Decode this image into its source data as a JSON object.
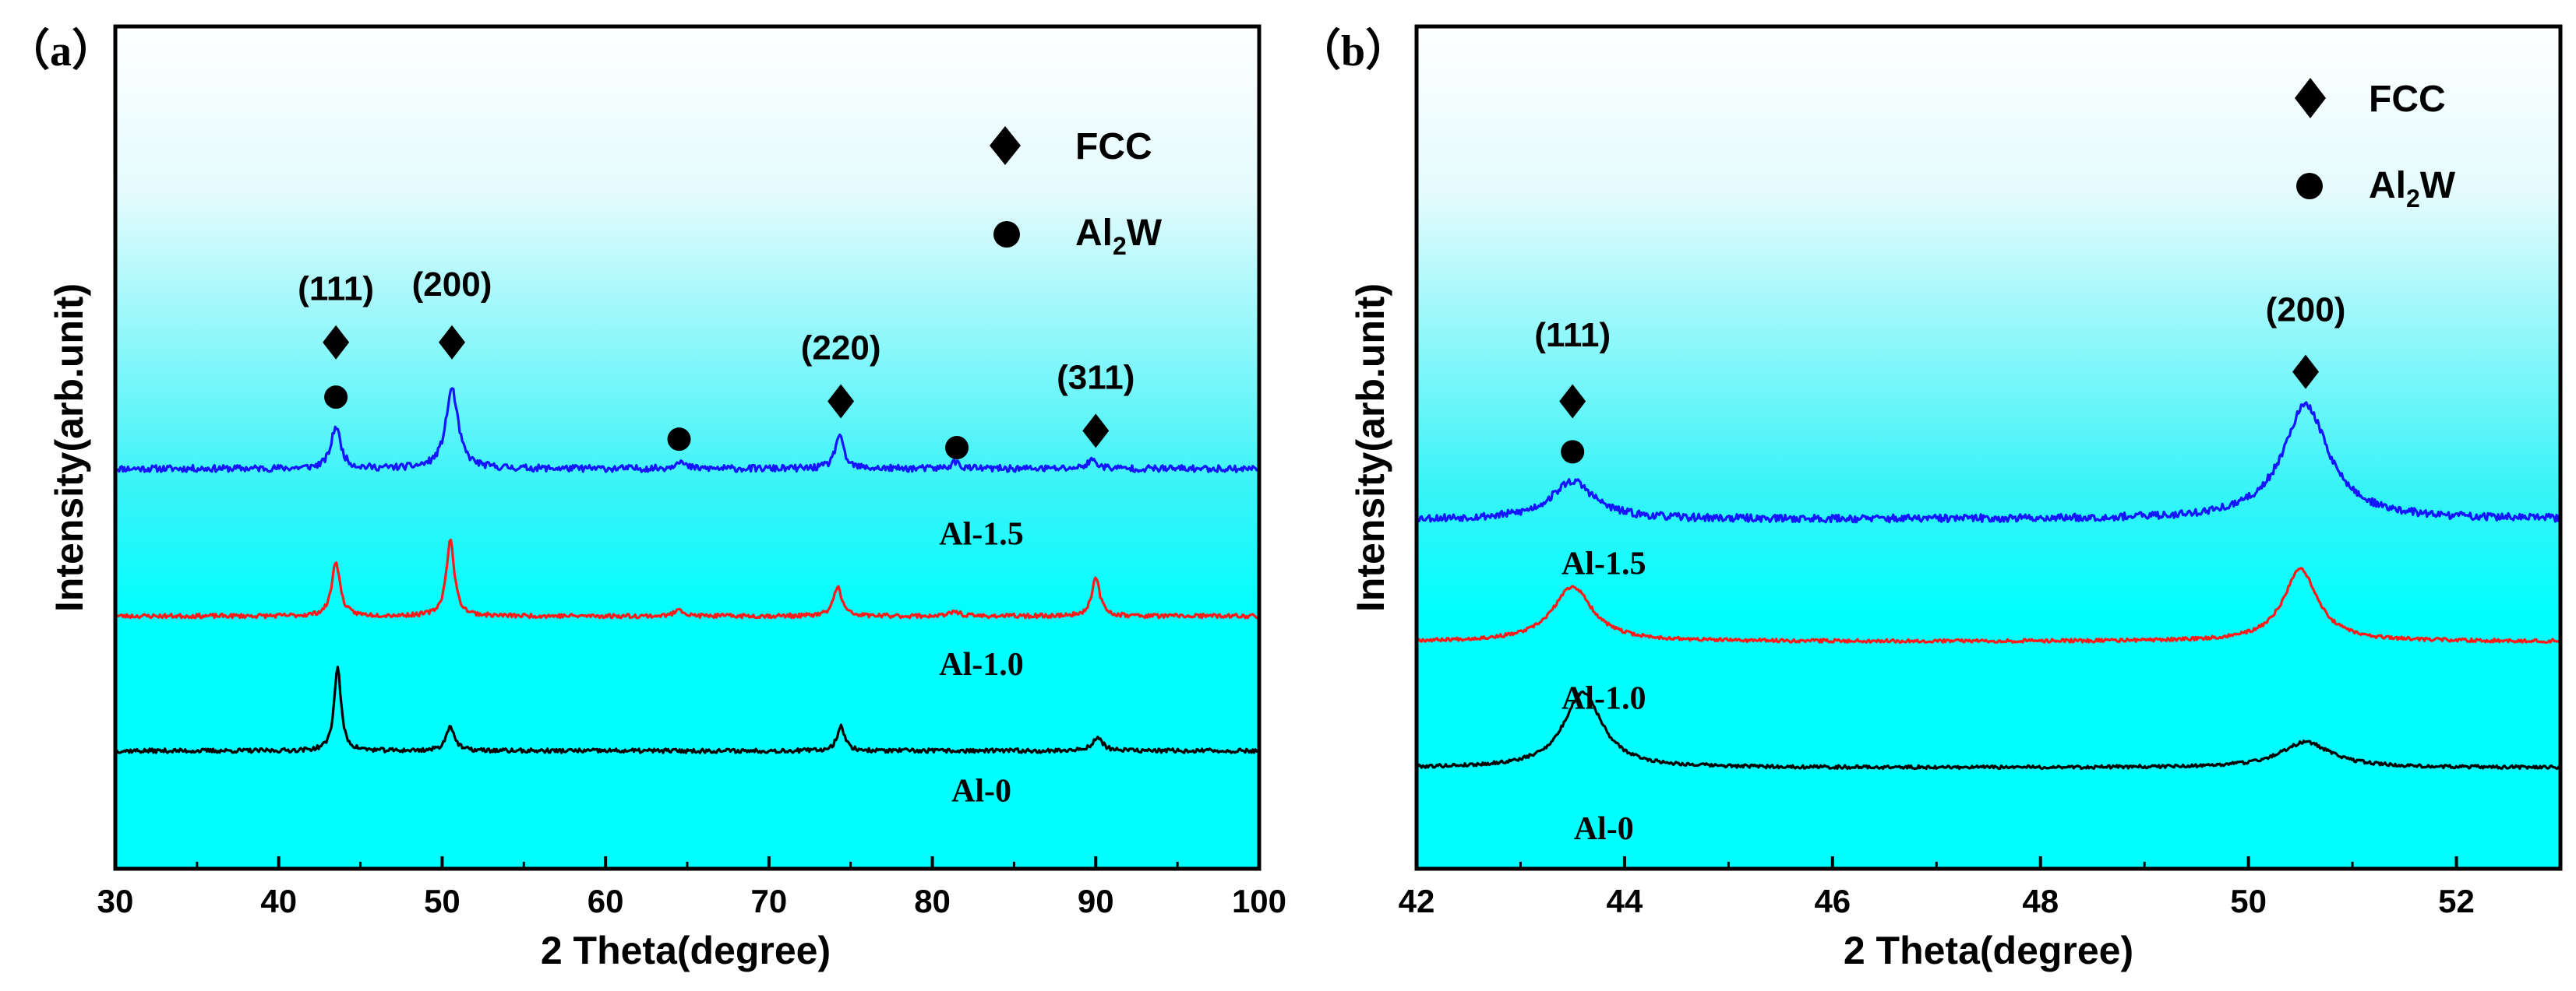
{
  "chart_data": [
    {
      "type": "line",
      "panel": "a",
      "panel_label": "（a）",
      "xlabel": "2 Theta(degree)",
      "ylabel": "Intensity(arb.unit)",
      "xlim": [
        30,
        100
      ],
      "ylim": [
        0,
        100
      ],
      "xticks": [
        30,
        40,
        50,
        60,
        70,
        80,
        90,
        100
      ],
      "legend": {
        "placement": "top-right",
        "entries": [
          {
            "marker": "diamond",
            "label": "FCC"
          },
          {
            "marker": "circle",
            "label": "Al2W",
            "label_main": "Al",
            "label_sub": "2",
            "label_end": "W"
          }
        ]
      },
      "background_gradient": [
        "#ffffff",
        "#00ffff"
      ],
      "series": [
        {
          "name": "Al-1.5",
          "label": "Al-1.5",
          "color": "#1515ff",
          "baseline": 47.5,
          "noise": 0.4,
          "seed": 11,
          "peaks": [
            [
              43.5,
              5,
              0.35
            ],
            [
              50.6,
              9.5,
              0.45
            ],
            [
              64.5,
              1,
              0.3
            ],
            [
              74.3,
              4,
              0.3
            ],
            [
              81.4,
              0.8,
              0.3
            ],
            [
              89.8,
              1,
              0.4
            ]
          ]
        },
        {
          "name": "Al-1.0",
          "label": "Al-1.0",
          "color": "#ff1a1a",
          "baseline": 30,
          "noise": 0.25,
          "seed": 23,
          "peaks": [
            [
              43.5,
              6.5,
              0.3
            ],
            [
              50.5,
              9,
              0.3
            ],
            [
              64.5,
              1,
              0.25
            ],
            [
              74.2,
              3.5,
              0.3
            ],
            [
              81.4,
              0.6,
              0.3
            ],
            [
              90,
              4.5,
              0.3
            ]
          ]
        },
        {
          "name": "Al-0",
          "label": "Al-0",
          "color": "#000000",
          "baseline": 14,
          "noise": 0.25,
          "seed": 37,
          "peaks": [
            [
              43.6,
              10,
              0.25
            ],
            [
              50.5,
              3,
              0.3
            ],
            [
              74.4,
              3,
              0.28
            ],
            [
              90.1,
              1.5,
              0.4
            ]
          ]
        }
      ],
      "series_label_x": 83,
      "series_label_y": [
        38.5,
        23,
        8
      ],
      "annotations": [
        {
          "text": "(111)",
          "x": 43.5,
          "label_y": 67.5,
          "markers": [
            {
              "type": "diamond",
              "y": 62.5
            },
            {
              "type": "circle",
              "y": 56
            }
          ]
        },
        {
          "text": "(200)",
          "x": 50.6,
          "label_y": 68,
          "markers": [
            {
              "type": "diamond",
              "y": 62.5
            }
          ]
        },
        {
          "text": "(220)",
          "x": 74.4,
          "label_y": 60.5,
          "markers": [
            {
              "type": "diamond",
              "y": 55.5
            }
          ]
        },
        {
          "text": "(311)",
          "x": 90,
          "label_y": 57,
          "markers": [
            {
              "type": "diamond",
              "y": 52
            }
          ]
        },
        {
          "text": "",
          "x": 64.5,
          "markers": [
            {
              "type": "circle",
              "y": 51
            }
          ]
        },
        {
          "text": "",
          "x": 81.5,
          "markers": [
            {
              "type": "circle",
              "y": 50
            }
          ]
        }
      ]
    },
    {
      "type": "line",
      "panel": "b",
      "panel_label": "（b）",
      "xlabel": "2 Theta(degree)",
      "ylabel": "Intensity(arb.unit)",
      "xlim": [
        42,
        53
      ],
      "ylim": [
        0,
        100
      ],
      "xticks": [
        42,
        44,
        46,
        48,
        50,
        52
      ],
      "legend": {
        "placement": "top-right",
        "entries": [
          {
            "marker": "diamond",
            "label": "FCC"
          },
          {
            "marker": "circle",
            "label": "Al2W",
            "label_main": "Al",
            "label_sub": "2",
            "label_end": "W"
          }
        ]
      },
      "background_gradient": [
        "#ffffff",
        "#00ffff"
      ],
      "series": [
        {
          "name": "Al-1.5",
          "label": "Al-1.5",
          "color": "#1515ff",
          "baseline": 41.5,
          "noise": 0.45,
          "seed": 53,
          "peaks": [
            [
              43.5,
              4.5,
              0.25
            ],
            [
              50.55,
              13.5,
              0.27
            ]
          ]
        },
        {
          "name": "Al-1.0",
          "label": "Al-1.0",
          "color": "#ff1a1a",
          "baseline": 27,
          "noise": 0.2,
          "seed": 67,
          "peaks": [
            [
              43.5,
              6.5,
              0.23
            ],
            [
              50.5,
              8.5,
              0.2
            ]
          ]
        },
        {
          "name": "Al-0",
          "label": "Al-0",
          "color": "#000000",
          "baseline": 12,
          "noise": 0.2,
          "seed": 79,
          "peaks": [
            [
              43.6,
              9,
              0.22
            ],
            [
              50.55,
              3,
              0.3
            ]
          ]
        }
      ],
      "series_label_x": 43.8,
      "series_label_y": [
        35,
        19,
        3.5
      ],
      "annotations": [
        {
          "text": "(111)",
          "x": 43.5,
          "label_y": 62,
          "markers": [
            {
              "type": "diamond",
              "y": 55.5
            },
            {
              "type": "circle",
              "y": 49.5
            }
          ]
        },
        {
          "text": "(200)",
          "x": 50.55,
          "label_y": 65,
          "markers": [
            {
              "type": "diamond",
              "y": 59
            }
          ]
        }
      ]
    }
  ]
}
